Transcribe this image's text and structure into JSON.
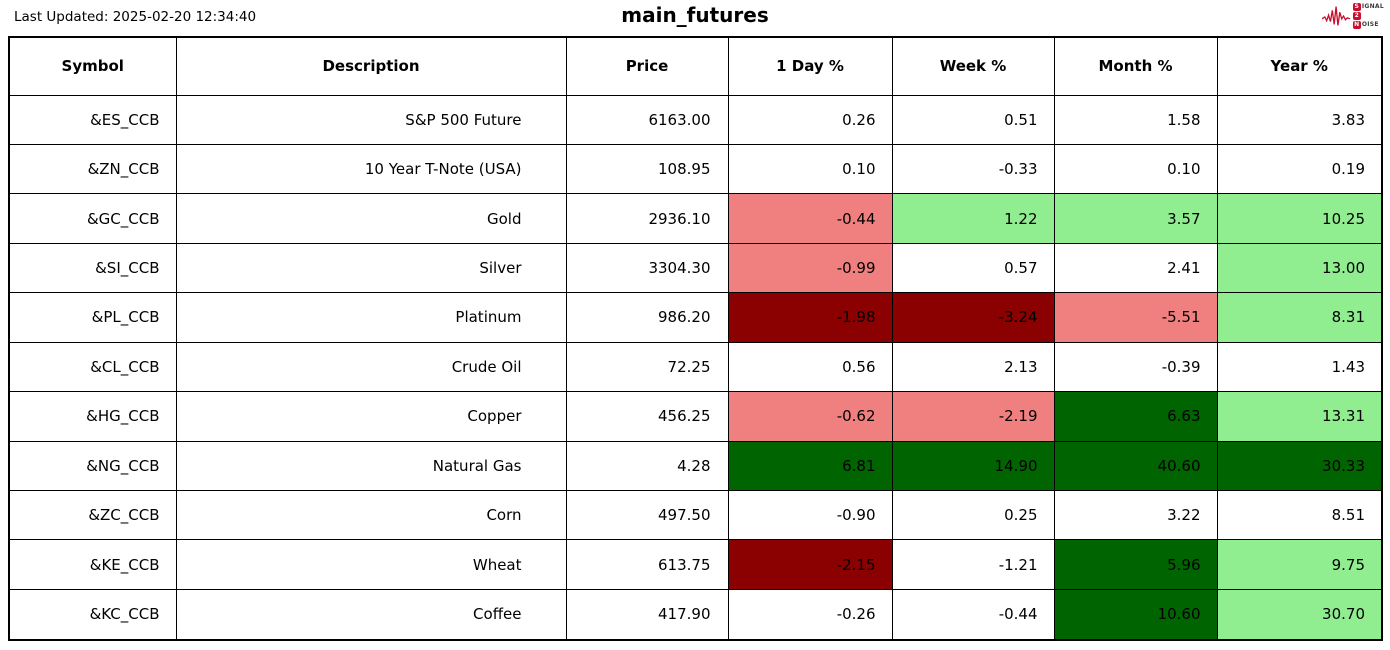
{
  "header": {
    "last_updated": "Last Updated: 2025-02-20 12:34:40",
    "title": "main_futures"
  },
  "logo": {
    "badge1": "S",
    "rest1": "IGNAL",
    "badge2": "2",
    "badge3": "N",
    "rest3": "OISE",
    "accent": "#c8102e"
  },
  "colors": {
    "none": "#FFFFFF",
    "light_red": "#F08080",
    "dark_red": "#8B0000",
    "light_green": "#90EE90",
    "dark_green": "#006400",
    "border": "#000000"
  },
  "chart_data": {
    "type": "table",
    "title": "main_futures",
    "columns": [
      "Symbol",
      "Description",
      "Price",
      "1 Day %",
      "Week %",
      "Month %",
      "Year %"
    ],
    "rows": [
      {
        "symbol": "&ES_CCB",
        "description": "S&P 500 Future",
        "price": "6163.00",
        "pcts": [
          "0.26",
          "0.51",
          "1.58",
          "3.83"
        ],
        "pct_colors": [
          "none",
          "none",
          "none",
          "none"
        ]
      },
      {
        "symbol": "&ZN_CCB",
        "description": "10 Year T-Note (USA)",
        "price": "108.95",
        "pcts": [
          "0.10",
          "-0.33",
          "0.10",
          "0.19"
        ],
        "pct_colors": [
          "none",
          "none",
          "none",
          "none"
        ]
      },
      {
        "symbol": "&GC_CCB",
        "description": "Gold",
        "price": "2936.10",
        "pcts": [
          "-0.44",
          "1.22",
          "3.57",
          "10.25"
        ],
        "pct_colors": [
          "light_red",
          "light_green",
          "light_green",
          "light_green"
        ]
      },
      {
        "symbol": "&SI_CCB",
        "description": "Silver",
        "price": "3304.30",
        "pcts": [
          "-0.99",
          "0.57",
          "2.41",
          "13.00"
        ],
        "pct_colors": [
          "light_red",
          "none",
          "none",
          "light_green"
        ]
      },
      {
        "symbol": "&PL_CCB",
        "description": "Platinum",
        "price": "986.20",
        "pcts": [
          "-1.98",
          "-3.24",
          "-5.51",
          "8.31"
        ],
        "pct_colors": [
          "dark_red",
          "dark_red",
          "light_red",
          "light_green"
        ]
      },
      {
        "symbol": "&CL_CCB",
        "description": "Crude Oil",
        "price": "72.25",
        "pcts": [
          "0.56",
          "2.13",
          "-0.39",
          "1.43"
        ],
        "pct_colors": [
          "none",
          "none",
          "none",
          "none"
        ]
      },
      {
        "symbol": "&HG_CCB",
        "description": "Copper",
        "price": "456.25",
        "pcts": [
          "-0.62",
          "-2.19",
          "6.63",
          "13.31"
        ],
        "pct_colors": [
          "light_red",
          "light_red",
          "dark_green",
          "light_green"
        ]
      },
      {
        "symbol": "&NG_CCB",
        "description": "Natural Gas",
        "price": "4.28",
        "pcts": [
          "6.81",
          "14.90",
          "40.60",
          "30.33"
        ],
        "pct_colors": [
          "dark_green",
          "dark_green",
          "dark_green",
          "dark_green"
        ]
      },
      {
        "symbol": "&ZC_CCB",
        "description": "Corn",
        "price": "497.50",
        "pcts": [
          "-0.90",
          "0.25",
          "3.22",
          "8.51"
        ],
        "pct_colors": [
          "none",
          "none",
          "none",
          "none"
        ]
      },
      {
        "symbol": "&KE_CCB",
        "description": "Wheat",
        "price": "613.75",
        "pcts": [
          "-2.15",
          "-1.21",
          "5.96",
          "9.75"
        ],
        "pct_colors": [
          "dark_red",
          "none",
          "dark_green",
          "light_green"
        ]
      },
      {
        "symbol": "&KC_CCB",
        "description": "Coffee",
        "price": "417.90",
        "pcts": [
          "-0.26",
          "-0.44",
          "10.60",
          "30.70"
        ],
        "pct_colors": [
          "none",
          "none",
          "dark_green",
          "light_green"
        ]
      }
    ]
  }
}
